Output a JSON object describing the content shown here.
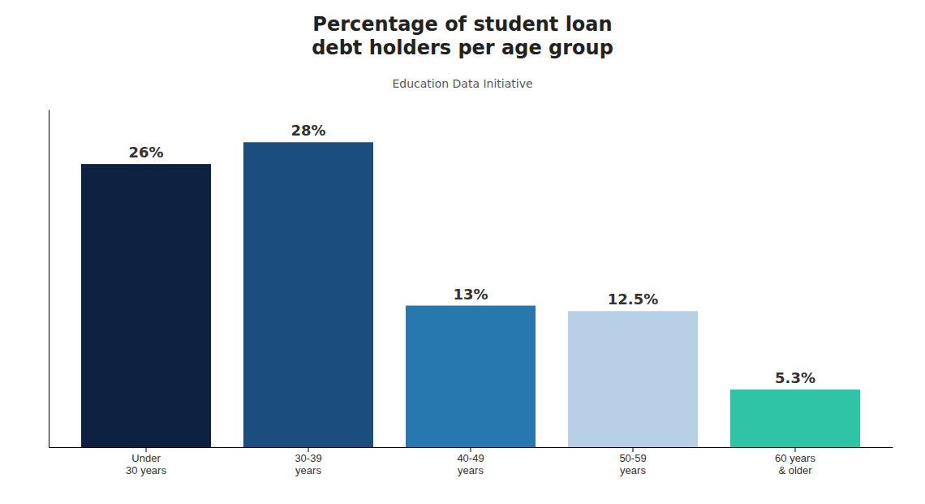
{
  "chart_data": {
    "type": "bar",
    "title": "Percentage of student loan\ndebt holders per age group",
    "annotations": [
      "Education Data Initiative"
    ],
    "categories": [
      "Under\n30 years",
      "30-39\nyears",
      "40-49\nyears",
      "50-59\nyears",
      "60 years\n& older"
    ],
    "values": [
      26,
      28,
      13,
      12.5,
      5.3
    ],
    "value_labels": [
      "26%",
      "28%",
      "13%",
      "12.5%",
      "5.3%"
    ],
    "colors": [
      "#0d2240",
      "#1b4e7e",
      "#2878b0",
      "#b8cfe8",
      "#2ec4a5"
    ],
    "ylim": [
      0,
      31
    ],
    "grid": false,
    "data_labels": true,
    "tick_labels": "x"
  }
}
